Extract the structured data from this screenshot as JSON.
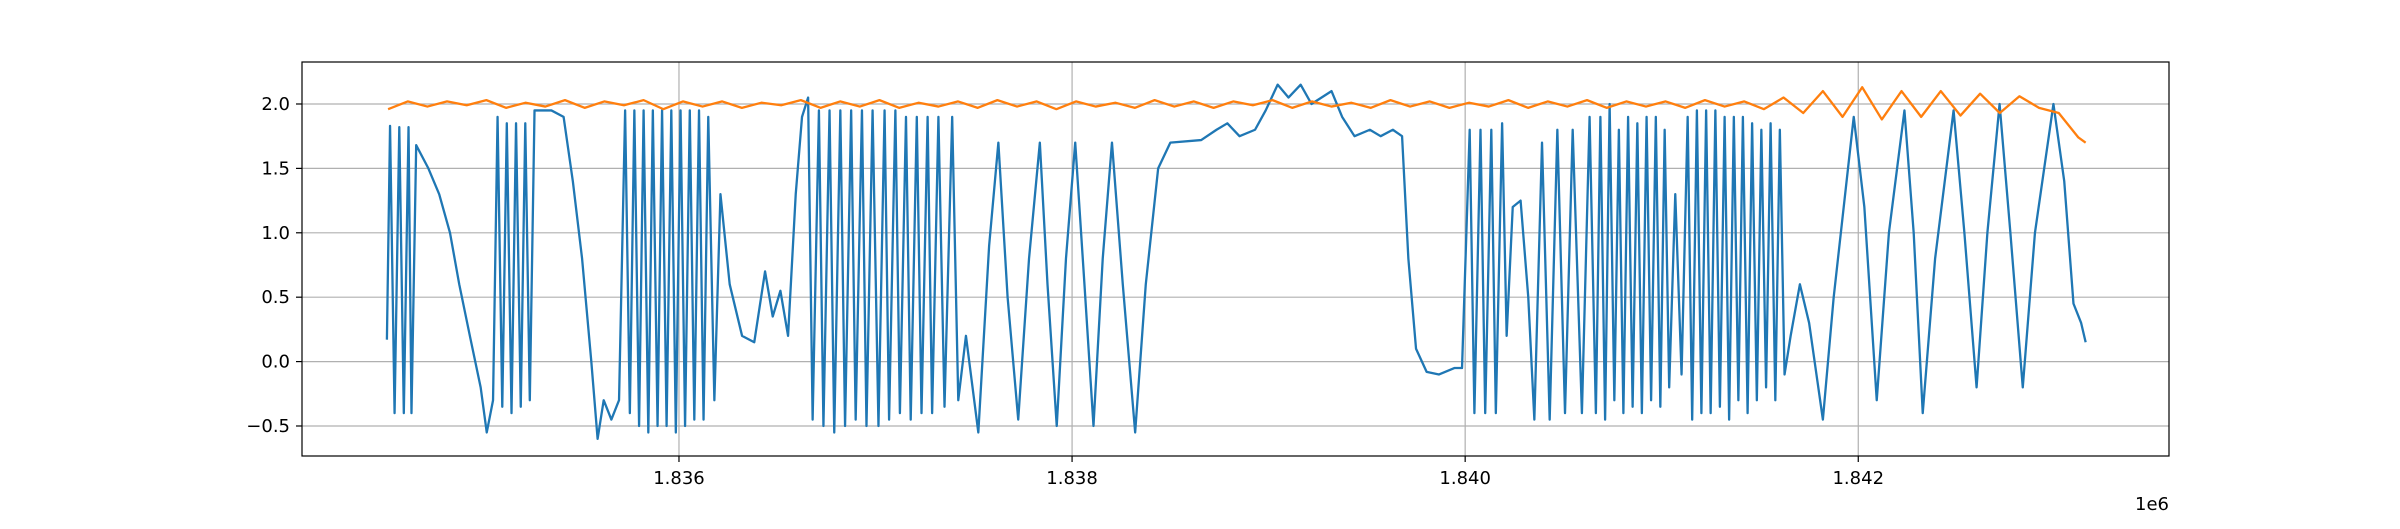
{
  "chart_data": {
    "type": "line",
    "x_offset_text": "1e6",
    "xlim": [
      1834082,
      1843581
    ],
    "xticks": [
      {
        "value": 1836000,
        "label": "1.836"
      },
      {
        "value": 1838000,
        "label": "1.838"
      },
      {
        "value": 1840000,
        "label": "1.840"
      },
      {
        "value": 1842000,
        "label": "1.842"
      }
    ],
    "ylim": [
      -0.733,
      2.326
    ],
    "yticks": [
      {
        "value": -0.5,
        "label": "−0.5"
      },
      {
        "value": 0,
        "label": "0.0"
      },
      0.5,
      {
        "value": 1,
        "label": "1.0"
      },
      1.5,
      {
        "value": 2,
        "label": "2.0"
      }
    ],
    "grid": true,
    "series": [
      {
        "color": "#1f77b4",
        "x": [
          1834514,
          1834530,
          1834553,
          1834577,
          1834600,
          1834624,
          1834639,
          1834663,
          1834725,
          1834780,
          1834835,
          1834882,
          1834936,
          1834991,
          1835022,
          1835054,
          1835077,
          1835101,
          1835124,
          1835148,
          1835171,
          1835195,
          1835218,
          1835241,
          1835265,
          1835351,
          1835413,
          1835460,
          1835507,
          1835554,
          1835586,
          1835617,
          1835656,
          1835695,
          1835726,
          1835750,
          1835773,
          1835797,
          1835820,
          1835844,
          1835867,
          1835891,
          1835914,
          1835937,
          1835961,
          1835984,
          1836008,
          1836031,
          1836055,
          1836078,
          1836102,
          1836125,
          1836149,
          1836180,
          1836211,
          1836258,
          1836321,
          1836383,
          1836438,
          1836477,
          1836516,
          1836555,
          1836594,
          1836626,
          1836657,
          1836680,
          1836712,
          1836735,
          1836766,
          1836790,
          1836821,
          1836845,
          1836876,
          1836899,
          1836931,
          1836954,
          1836985,
          1837015,
          1837046,
          1837069,
          1837101,
          1837124,
          1837155,
          1837179,
          1837210,
          1837234,
          1837265,
          1837288,
          1837320,
          1837351,
          1837390,
          1837421,
          1837460,
          1837523,
          1837578,
          1837625,
          1837672,
          1837726,
          1837781,
          1837836,
          1837875,
          1837922,
          1837969,
          1838016,
          1838063,
          1838109,
          1838156,
          1838203,
          1838258,
          1838321,
          1838375,
          1838438,
          1838500,
          1838657,
          1838735,
          1838790,
          1838852,
          1838931,
          1838985,
          1839046,
          1839101,
          1839163,
          1839218,
          1839320,
          1839374,
          1839437,
          1839515,
          1839570,
          1839632,
          1839679,
          1839711,
          1839750,
          1839804,
          1839867,
          1839945,
          1839984,
          1840023,
          1840047,
          1840078,
          1840102,
          1840133,
          1840156,
          1840188,
          1840211,
          1840242,
          1840282,
          1840321,
          1840352,
          1840391,
          1840430,
          1840469,
          1840508,
          1840547,
          1840594,
          1840633,
          1840665,
          1840688,
          1840712,
          1840735,
          1840759,
          1840782,
          1840805,
          1840829,
          1840852,
          1840876,
          1840899,
          1840923,
          1840946,
          1840970,
          1840993,
          1841015,
          1841038,
          1841069,
          1841101,
          1841132,
          1841155,
          1841179,
          1841202,
          1841226,
          1841249,
          1841273,
          1841296,
          1841320,
          1841343,
          1841367,
          1841390,
          1841413,
          1841437,
          1841460,
          1841484,
          1841507,
          1841531,
          1841554,
          1841578,
          1841601,
          1841625,
          1841656,
          1841703,
          1841750,
          1841820,
          1841875,
          1841977,
          1842031,
          1842094,
          1842156,
          1842235,
          1842282,
          1842328,
          1842391,
          1842485,
          1842540,
          1842602,
          1842657,
          1842719,
          1842774,
          1842837,
          1842899,
          1842993,
          1843048,
          1843095,
          1843134,
          1843157
        ],
        "values": [
          0.17,
          1.83,
          -0.4,
          1.82,
          -0.4,
          1.82,
          -0.4,
          1.68,
          1.5,
          1.3,
          1.0,
          0.6,
          0.2,
          -0.2,
          -0.55,
          -0.3,
          1.9,
          -0.35,
          1.85,
          -0.4,
          1.85,
          -0.35,
          1.85,
          -0.3,
          1.95,
          1.95,
          1.9,
          1.4,
          0.8,
          0.0,
          -0.6,
          -0.3,
          -0.45,
          -0.3,
          1.95,
          -0.4,
          1.95,
          -0.5,
          1.95,
          -0.55,
          1.95,
          -0.5,
          1.95,
          -0.5,
          1.95,
          -0.55,
          1.95,
          -0.5,
          1.95,
          -0.45,
          1.95,
          -0.45,
          1.9,
          -0.3,
          1.3,
          0.6,
          0.2,
          0.15,
          0.7,
          0.35,
          0.55,
          0.2,
          1.3,
          1.9,
          2.05,
          -0.45,
          1.95,
          -0.5,
          1.95,
          -0.55,
          1.95,
          -0.5,
          1.95,
          -0.45,
          1.95,
          -0.5,
          1.95,
          -0.5,
          1.95,
          -0.45,
          1.95,
          -0.4,
          1.9,
          -0.45,
          1.9,
          -0.4,
          1.9,
          -0.4,
          1.9,
          -0.35,
          1.9,
          -0.3,
          0.2,
          -0.55,
          0.9,
          1.7,
          0.5,
          -0.45,
          0.8,
          1.7,
          0.6,
          -0.5,
          0.8,
          1.7,
          0.6,
          -0.5,
          0.8,
          1.7,
          0.6,
          -0.55,
          0.6,
          1.5,
          1.7,
          1.72,
          1.8,
          1.85,
          1.75,
          1.8,
          1.95,
          2.15,
          2.05,
          2.15,
          2.0,
          2.1,
          1.9,
          1.75,
          1.8,
          1.75,
          1.8,
          1.75,
          0.8,
          0.1,
          -0.08,
          -0.1,
          -0.05,
          -0.05,
          1.8,
          -0.4,
          1.8,
          -0.4,
          1.8,
          -0.4,
          1.85,
          0.2,
          1.2,
          1.25,
          0.5,
          -0.45,
          1.7,
          -0.45,
          1.8,
          -0.4,
          1.8,
          -0.4,
          1.9,
          -0.4,
          1.9,
          -0.45,
          2.0,
          -0.3,
          1.8,
          -0.4,
          1.9,
          -0.35,
          1.85,
          -0.4,
          1.9,
          -0.3,
          1.9,
          -0.35,
          1.8,
          -0.2,
          1.3,
          -0.1,
          1.9,
          -0.45,
          1.95,
          -0.4,
          1.95,
          -0.4,
          1.95,
          -0.35,
          1.9,
          -0.45,
          1.9,
          -0.3,
          1.9,
          -0.4,
          1.85,
          -0.3,
          1.8,
          -0.2,
          1.85,
          -0.3,
          1.8,
          -0.1,
          0.2,
          0.6,
          0.3,
          -0.45,
          0.5,
          1.9,
          1.2,
          -0.3,
          1.0,
          1.95,
          1.0,
          -0.4,
          0.8,
          1.95,
          1.0,
          -0.2,
          1.0,
          2.0,
          1.0,
          -0.2,
          1.0,
          2.0,
          1.4,
          0.45,
          0.3,
          0.15
        ]
      },
      {
        "color": "#ff7f0e",
        "x": [
          1834520,
          1834620,
          1834720,
          1834820,
          1834920,
          1835020,
          1835120,
          1835220,
          1835320,
          1835420,
          1835520,
          1835620,
          1835720,
          1835820,
          1835920,
          1836020,
          1836120,
          1836220,
          1836320,
          1836420,
          1836520,
          1836620,
          1836720,
          1836820,
          1836920,
          1837020,
          1837120,
          1837220,
          1837320,
          1837420,
          1837520,
          1837620,
          1837720,
          1837820,
          1837920,
          1838020,
          1838120,
          1838220,
          1838320,
          1838420,
          1838520,
          1838620,
          1838720,
          1838820,
          1838920,
          1839020,
          1839120,
          1839220,
          1839320,
          1839420,
          1839520,
          1839620,
          1839720,
          1839820,
          1839920,
          1840020,
          1840120,
          1840220,
          1840320,
          1840420,
          1840520,
          1840620,
          1840720,
          1840820,
          1840920,
          1841020,
          1841120,
          1841220,
          1841320,
          1841420,
          1841520,
          1841620,
          1841720,
          1841820,
          1841920,
          1842020,
          1842120,
          1842220,
          1842320,
          1842420,
          1842520,
          1842620,
          1842720,
          1842820,
          1842920,
          1843020,
          1843120,
          1843157
        ],
        "values": [
          1.96,
          2.02,
          1.98,
          2.02,
          1.99,
          2.03,
          1.97,
          2.01,
          1.98,
          2.03,
          1.97,
          2.02,
          1.99,
          2.03,
          1.96,
          2.02,
          1.98,
          2.02,
          1.97,
          2.01,
          1.99,
          2.03,
          1.97,
          2.02,
          1.98,
          2.03,
          1.97,
          2.01,
          1.98,
          2.02,
          1.97,
          2.03,
          1.98,
          2.02,
          1.96,
          2.02,
          1.98,
          2.01,
          1.97,
          2.03,
          1.98,
          2.02,
          1.97,
          2.02,
          1.99,
          2.03,
          1.97,
          2.02,
          1.98,
          2.01,
          1.97,
          2.03,
          1.98,
          2.02,
          1.97,
          2.01,
          1.98,
          2.03,
          1.97,
          2.02,
          1.98,
          2.03,
          1.97,
          2.02,
          1.98,
          2.02,
          1.97,
          2.03,
          1.98,
          2.02,
          1.96,
          2.05,
          1.93,
          2.1,
          1.9,
          2.13,
          1.88,
          2.1,
          1.9,
          2.1,
          1.91,
          2.08,
          1.93,
          2.06,
          1.97,
          1.93,
          1.74,
          1.7
        ]
      }
    ]
  }
}
